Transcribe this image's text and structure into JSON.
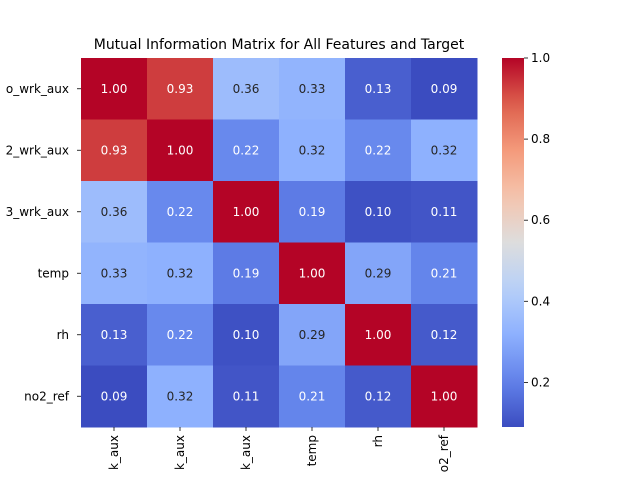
{
  "chart_data": {
    "type": "heatmap",
    "title": "Mutual Information Matrix for All Features and Target",
    "row_labels": [
      "o_wrk_aux",
      "2_wrk_aux",
      "3_wrk_aux",
      "temp",
      "rh",
      "no2_ref"
    ],
    "col_labels": [
      "k_aux",
      "k_aux",
      "k_aux",
      "temp",
      "rh",
      "o2_ref"
    ],
    "values": [
      [
        1.0,
        0.93,
        0.36,
        0.33,
        0.13,
        0.09
      ],
      [
        0.93,
        1.0,
        0.22,
        0.32,
        0.22,
        0.32
      ],
      [
        0.36,
        0.22,
        1.0,
        0.19,
        0.1,
        0.11
      ],
      [
        0.33,
        0.32,
        0.19,
        1.0,
        0.29,
        0.21
      ],
      [
        0.13,
        0.22,
        0.1,
        0.29,
        1.0,
        0.12
      ],
      [
        0.09,
        0.32,
        0.11,
        0.21,
        0.12,
        1.0
      ]
    ],
    "value_format": "2 decimals",
    "colormap": "coolwarm",
    "colorbar": {
      "min": 0.09,
      "max": 1.0,
      "ticks": [
        0.2,
        0.4,
        0.6,
        0.8,
        1.0
      ],
      "tick_labels": [
        "0.2",
        "0.4",
        "0.6",
        "0.8",
        "1.0"
      ],
      "placement": "right"
    },
    "grid": false,
    "legend": "none"
  }
}
